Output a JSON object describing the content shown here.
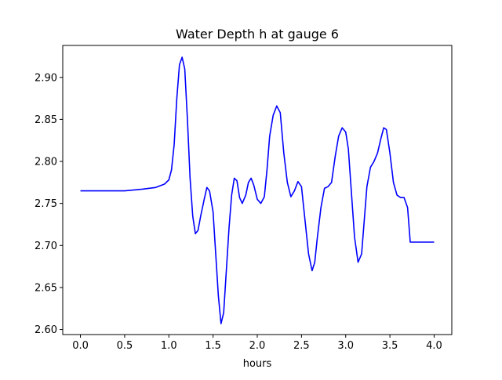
{
  "chart_data": {
    "type": "line",
    "title": "Water Depth h at gauge 6",
    "xlabel": "hours",
    "ylabel": "",
    "xlim": [
      -0.2,
      4.2
    ],
    "ylim": [
      2.594,
      2.938
    ],
    "x_ticks": [
      0.0,
      0.5,
      1.0,
      1.5,
      2.0,
      2.5,
      3.0,
      3.5,
      4.0
    ],
    "x_tick_labels": [
      "0.0",
      "0.5",
      "1.0",
      "1.5",
      "2.0",
      "2.5",
      "3.0",
      "3.5",
      "4.0"
    ],
    "y_ticks": [
      2.6,
      2.65,
      2.7,
      2.75,
      2.8,
      2.85,
      2.9
    ],
    "y_tick_labels": [
      "2.60",
      "2.65",
      "2.70",
      "2.75",
      "2.80",
      "2.85",
      "2.90"
    ],
    "grid": false,
    "legend": "none",
    "series": [
      {
        "color": "#0000ff",
        "x": [
          0.0,
          0.3,
          0.5,
          0.7,
          0.85,
          0.95,
          1.0,
          1.03,
          1.06,
          1.09,
          1.12,
          1.15,
          1.18,
          1.21,
          1.24,
          1.27,
          1.3,
          1.33,
          1.36,
          1.4,
          1.43,
          1.46,
          1.5,
          1.53,
          1.56,
          1.59,
          1.62,
          1.65,
          1.68,
          1.71,
          1.74,
          1.77,
          1.8,
          1.83,
          1.87,
          1.9,
          1.93,
          1.96,
          2.0,
          2.04,
          2.08,
          2.11,
          2.14,
          2.18,
          2.22,
          2.26,
          2.3,
          2.34,
          2.38,
          2.42,
          2.46,
          2.5,
          2.54,
          2.58,
          2.62,
          2.65,
          2.68,
          2.72,
          2.76,
          2.8,
          2.84,
          2.88,
          2.92,
          2.96,
          3.0,
          3.03,
          3.06,
          3.1,
          3.14,
          3.18,
          3.21,
          3.24,
          3.28,
          3.32,
          3.36,
          3.4,
          3.43,
          3.46,
          3.5,
          3.54,
          3.58,
          3.62,
          3.66,
          3.7,
          3.73,
          3.76,
          3.8,
          3.84,
          3.88,
          3.92,
          3.95,
          3.98,
          4.0
        ],
        "y": [
          2.765,
          2.765,
          2.765,
          2.767,
          2.769,
          2.773,
          2.778,
          2.79,
          2.82,
          2.875,
          2.915,
          2.924,
          2.91,
          2.85,
          2.78,
          2.735,
          2.714,
          2.718,
          2.735,
          2.755,
          2.769,
          2.765,
          2.74,
          2.69,
          2.64,
          2.607,
          2.62,
          2.67,
          2.72,
          2.76,
          2.78,
          2.777,
          2.757,
          2.75,
          2.76,
          2.775,
          2.78,
          2.772,
          2.755,
          2.75,
          2.758,
          2.79,
          2.83,
          2.855,
          2.866,
          2.858,
          2.81,
          2.775,
          2.758,
          2.765,
          2.776,
          2.77,
          2.73,
          2.69,
          2.67,
          2.68,
          2.71,
          2.745,
          2.768,
          2.77,
          2.775,
          2.805,
          2.83,
          2.84,
          2.835,
          2.815,
          2.77,
          2.71,
          2.68,
          2.69,
          2.73,
          2.77,
          2.793,
          2.8,
          2.81,
          2.828,
          2.84,
          2.838,
          2.81,
          2.775,
          2.76,
          2.757,
          2.757,
          2.745,
          2.704,
          2.704,
          2.704,
          2.704,
          2.704,
          2.704,
          2.704,
          2.704,
          2.704
        ]
      }
    ]
  }
}
